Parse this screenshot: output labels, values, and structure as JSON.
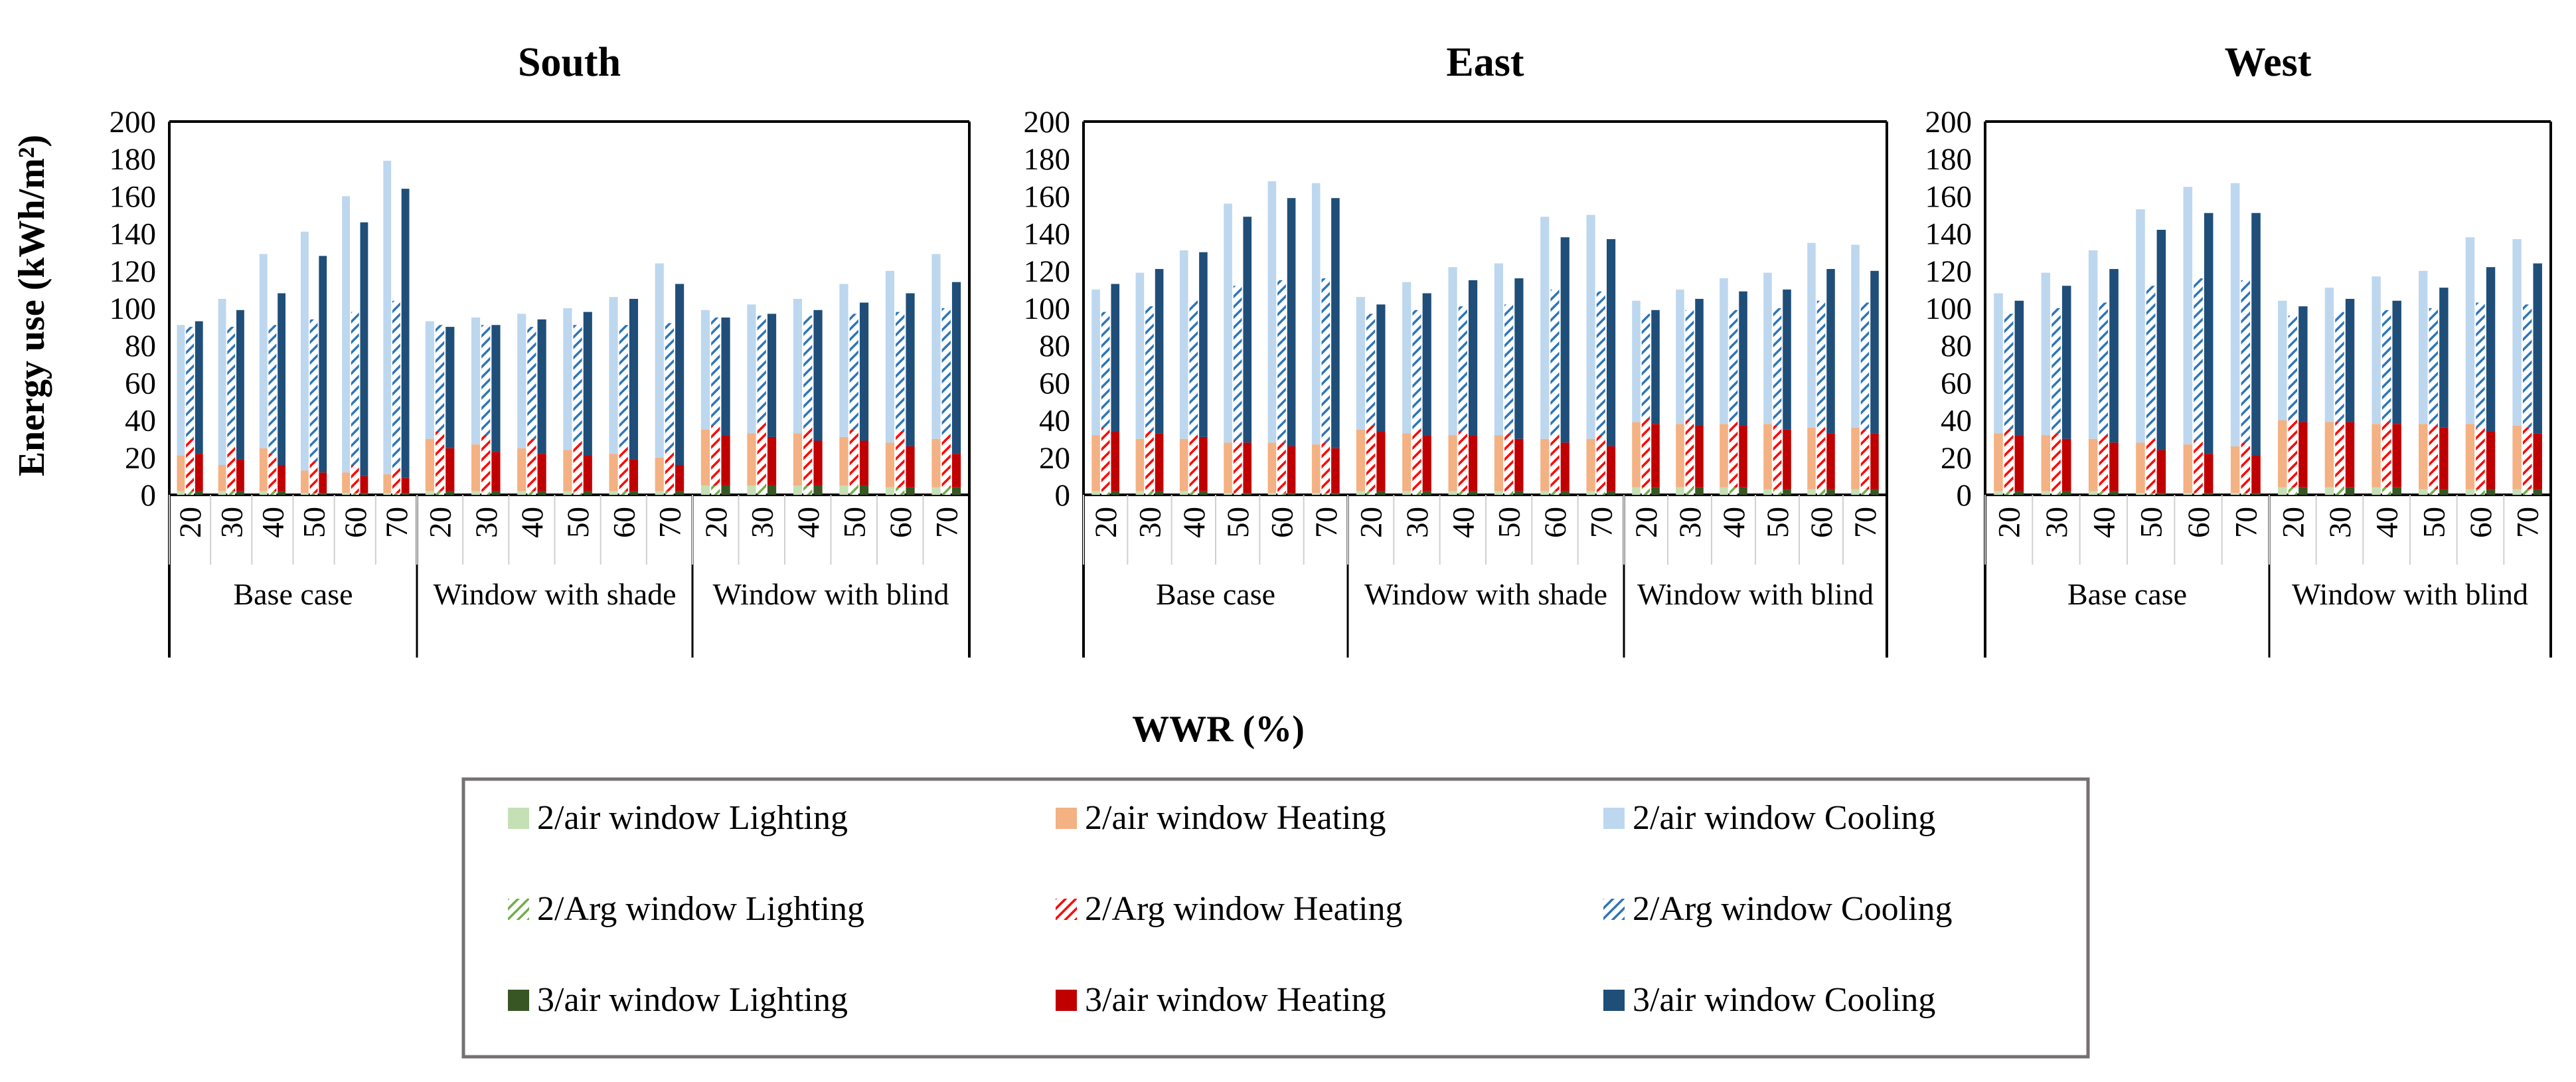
{
  "chart_data": {
    "type": "bar",
    "stacked": true,
    "xlabel": "WWR (%)",
    "ylabel": "Energy use (kWh/m²)",
    "ylim": [
      0,
      200
    ],
    "yticks": [
      0,
      20,
      40,
      60,
      80,
      100,
      120,
      140,
      160,
      180,
      200
    ],
    "stack_order": [
      "Lighting",
      "Heating",
      "Cooling"
    ],
    "window_types": [
      "2/air window",
      "2/Arg window",
      "3/air window"
    ],
    "styles": {
      "2/air window": {
        "Lighting": "#c5e0b4",
        "Heating": "#f4b183",
        "Cooling": "#bdd7ee"
      },
      "2/Arg window": {
        "Lighting": "#70ad47",
        "Heating": "#ff0000",
        "Cooling": "#2e75b6"
      },
      "3/air window": {
        "Lighting": "#375623",
        "Heating": "#c00000",
        "Cooling": "#1f4e79"
      }
    },
    "hatched_windows": [
      "2/Arg window"
    ],
    "legend": {
      "position": "bottom",
      "columns": 3,
      "entries": [
        "2/air window Lighting",
        "2/air window Heating",
        "2/air window Cooling",
        "2/Arg window Lighting",
        "2/Arg window Heating",
        "2/Arg window Cooling",
        "3/air window Lighting",
        "3/air window Heating",
        "3/air window Cooling"
      ]
    },
    "panels": [
      {
        "title": "South",
        "groups": [
          {
            "name": "Base case",
            "wwr": [
              20,
              30,
              40,
              50,
              60,
              70
            ],
            "series": {
              "2/air window": {
                "Lighting": [
                  2,
                  2,
                  2,
                  1,
                  1,
                  1
                ],
                "Heating": [
                  19,
                  14,
                  23,
                  12,
                  11,
                  10
                ],
                "Cooling": [
                  70,
                  89,
                  104,
                  128,
                  148,
                  168
                ]
              },
              "2/Arg window": {
                "Lighting": [
                  2,
                  2,
                  2,
                  1,
                  1,
                  1
                ],
                "Heating": [
                  28,
                  24,
                  20,
                  17,
                  15,
                  13
                ],
                "Cooling": [
                  60,
                  64,
                  69,
                  76,
                  82,
                  90
                ]
              },
              "3/air window": {
                "Lighting": [
                  2,
                  2,
                  2,
                  1,
                  1,
                  1
                ],
                "Heating": [
                  20,
                  17,
                  14,
                  11,
                  9,
                  8
                ],
                "Cooling": [
                  71,
                  80,
                  92,
                  116,
                  136,
                  155
                ]
              }
            }
          },
          {
            "name": "Window with shade",
            "wwr": [
              20,
              30,
              40,
              50,
              60,
              70
            ],
            "series": {
              "2/air window": {
                "Lighting": [
                  2,
                  2,
                  2,
                  2,
                  2,
                  2
                ],
                "Heating": [
                  28,
                  25,
                  23,
                  22,
                  20,
                  18
                ],
                "Cooling": [
                  63,
                  68,
                  72,
                  76,
                  84,
                  104
                ]
              },
              "2/Arg window": {
                "Lighting": [
                  2,
                  2,
                  2,
                  2,
                  2,
                  2
                ],
                "Heating": [
                  32,
                  30,
                  28,
                  26,
                  23,
                  21
                ],
                "Cooling": [
                  57,
                  59,
                  60,
                  63,
                  66,
                  69
                ]
              },
              "3/air window": {
                "Lighting": [
                  2,
                  2,
                  2,
                  2,
                  2,
                  2
                ],
                "Heating": [
                  23,
                  21,
                  20,
                  19,
                  17,
                  14
                ],
                "Cooling": [
                  65,
                  68,
                  72,
                  77,
                  86,
                  97
                ]
              }
            }
          },
          {
            "name": "Window with blind",
            "wwr": [
              20,
              30,
              40,
              50,
              60,
              70
            ],
            "series": {
              "2/air window": {
                "Lighting": [
                  5,
                  5,
                  5,
                  5,
                  4,
                  4
                ],
                "Heating": [
                  30,
                  28,
                  28,
                  26,
                  24,
                  26
                ],
                "Cooling": [
                  64,
                  69,
                  72,
                  82,
                  92,
                  99
                ]
              },
              "2/Arg window": {
                "Lighting": [
                  5,
                  5,
                  5,
                  5,
                  4,
                  4
                ],
                "Heating": [
                  32,
                  33,
                  31,
                  30,
                  30,
                  28
                ],
                "Cooling": [
                  58,
                  58,
                  60,
                  62,
                  64,
                  68
                ]
              },
              "3/air window": {
                "Lighting": [
                  5,
                  5,
                  5,
                  5,
                  4,
                  4
                ],
                "Heating": [
                  27,
                  26,
                  24,
                  24,
                  22,
                  18
                ],
                "Cooling": [
                  63,
                  66,
                  70,
                  74,
                  82,
                  92
                ]
              }
            }
          }
        ]
      },
      {
        "title": "East",
        "groups": [
          {
            "name": "Base case",
            "wwr": [
              20,
              30,
              40,
              50,
              60,
              70
            ],
            "series": {
              "2/air window": {
                "Lighting": [
                  2,
                  2,
                  2,
                  1,
                  1,
                  1
                ],
                "Heating": [
                  30,
                  28,
                  28,
                  27,
                  27,
                  26
                ],
                "Cooling": [
                  78,
                  89,
                  101,
                  128,
                  140,
                  140
                ]
              },
              "2/Arg window": {
                "Lighting": [
                  2,
                  2,
                  2,
                  1,
                  1,
                  1
                ],
                "Heating": [
                  34,
                  32,
                  30,
                  28,
                  27,
                  27
                ],
                "Cooling": [
                  62,
                  67,
                  72,
                  83,
                  87,
                  88
                ]
              },
              "3/air window": {
                "Lighting": [
                  2,
                  2,
                  2,
                  1,
                  1,
                  1
                ],
                "Heating": [
                  32,
                  31,
                  29,
                  27,
                  25,
                  24
                ],
                "Cooling": [
                  79,
                  88,
                  99,
                  121,
                  133,
                  134
                ]
              }
            }
          },
          {
            "name": "Window with shade",
            "wwr": [
              20,
              30,
              40,
              50,
              60,
              70
            ],
            "series": {
              "2/air window": {
                "Lighting": [
                  2,
                  2,
                  2,
                  2,
                  2,
                  2
                ],
                "Heating": [
                  33,
                  31,
                  30,
                  30,
                  28,
                  28
                ],
                "Cooling": [
                  71,
                  81,
                  90,
                  92,
                  119,
                  120
                ]
              },
              "2/Arg window": {
                "Lighting": [
                  2,
                  2,
                  2,
                  2,
                  2,
                  2
                ],
                "Heating": [
                  35,
                  33,
                  32,
                  31,
                  30,
                  30
                ],
                "Cooling": [
                  60,
                  64,
                  67,
                  69,
                  78,
                  77
                ]
              },
              "3/air window": {
                "Lighting": [
                  2,
                  2,
                  2,
                  2,
                  2,
                  2
                ],
                "Heating": [
                  32,
                  30,
                  30,
                  28,
                  26,
                  24
                ],
                "Cooling": [
                  68,
                  76,
                  83,
                  86,
                  110,
                  111
                ]
              }
            }
          },
          {
            "name": "Window with blind",
            "wwr": [
              20,
              30,
              40,
              50,
              60,
              70
            ],
            "series": {
              "2/air window": {
                "Lighting": [
                  4,
                  4,
                  4,
                  3,
                  3,
                  3
                ],
                "Heating": [
                  35,
                  34,
                  34,
                  35,
                  33,
                  33
                ],
                "Cooling": [
                  65,
                  72,
                  78,
                  81,
                  99,
                  98
                ]
              },
              "2/Arg window": {
                "Lighting": [
                  4,
                  4,
                  4,
                  3,
                  3,
                  3
                ],
                "Heating": [
                  37,
                  36,
                  35,
                  34,
                  33,
                  32
                ],
                "Cooling": [
                  56,
                  59,
                  60,
                  63,
                  68,
                  68
                ]
              },
              "3/air window": {
                "Lighting": [
                  4,
                  4,
                  4,
                  3,
                  3,
                  3
                ],
                "Heating": [
                  34,
                  33,
                  33,
                  32,
                  30,
                  30
                ],
                "Cooling": [
                  61,
                  68,
                  72,
                  75,
                  88,
                  87
                ]
              }
            }
          }
        ]
      },
      {
        "title": "West",
        "groups": [
          {
            "name": "Base case",
            "wwr": [
              20,
              30,
              40,
              50,
              60,
              70
            ],
            "series": {
              "2/air window": {
                "Lighting": [
                  2,
                  2,
                  2,
                  1,
                  1,
                  1
                ],
                "Heating": [
                  31,
                  30,
                  28,
                  27,
                  26,
                  25
                ],
                "Cooling": [
                  75,
                  87,
                  101,
                  125,
                  138,
                  141
                ]
              },
              "2/Arg window": {
                "Lighting": [
                  2,
                  2,
                  2,
                  1,
                  1,
                  1
                ],
                "Heating": [
                  33,
                  31,
                  30,
                  29,
                  28,
                  27
                ],
                "Cooling": [
                  62,
                  67,
                  71,
                  82,
                  87,
                  87
                ]
              },
              "3/air window": {
                "Lighting": [
                  2,
                  2,
                  2,
                  1,
                  1,
                  1
                ],
                "Heating": [
                  30,
                  28,
                  26,
                  23,
                  21,
                  20
                ],
                "Cooling": [
                  72,
                  82,
                  93,
                  118,
                  129,
                  130
                ]
              }
            }
          },
          {
            "name": "Window with blind",
            "wwr": [
              20,
              30,
              40,
              50,
              60,
              70
            ],
            "series": {
              "2/air window": {
                "Lighting": [
                  4,
                  4,
                  4,
                  3,
                  3,
                  3
                ],
                "Heating": [
                  36,
                  35,
                  34,
                  35,
                  35,
                  34
                ],
                "Cooling": [
                  64,
                  72,
                  79,
                  82,
                  100,
                  100
                ]
              },
              "2/Arg window": {
                "Lighting": [
                  4,
                  4,
                  4,
                  3,
                  3,
                  3
                ],
                "Heating": [
                  36,
                  35,
                  35,
                  34,
                  33,
                  33
                ],
                "Cooling": [
                  56,
                  59,
                  60,
                  63,
                  67,
                  66
                ]
              },
              "3/air window": {
                "Lighting": [
                  4,
                  4,
                  4,
                  3,
                  3,
                  3
                ],
                "Heating": [
                  35,
                  35,
                  34,
                  33,
                  31,
                  30
                ],
                "Cooling": [
                  62,
                  66,
                  66,
                  75,
                  88,
                  91
                ]
              }
            }
          }
        ]
      }
    ]
  }
}
